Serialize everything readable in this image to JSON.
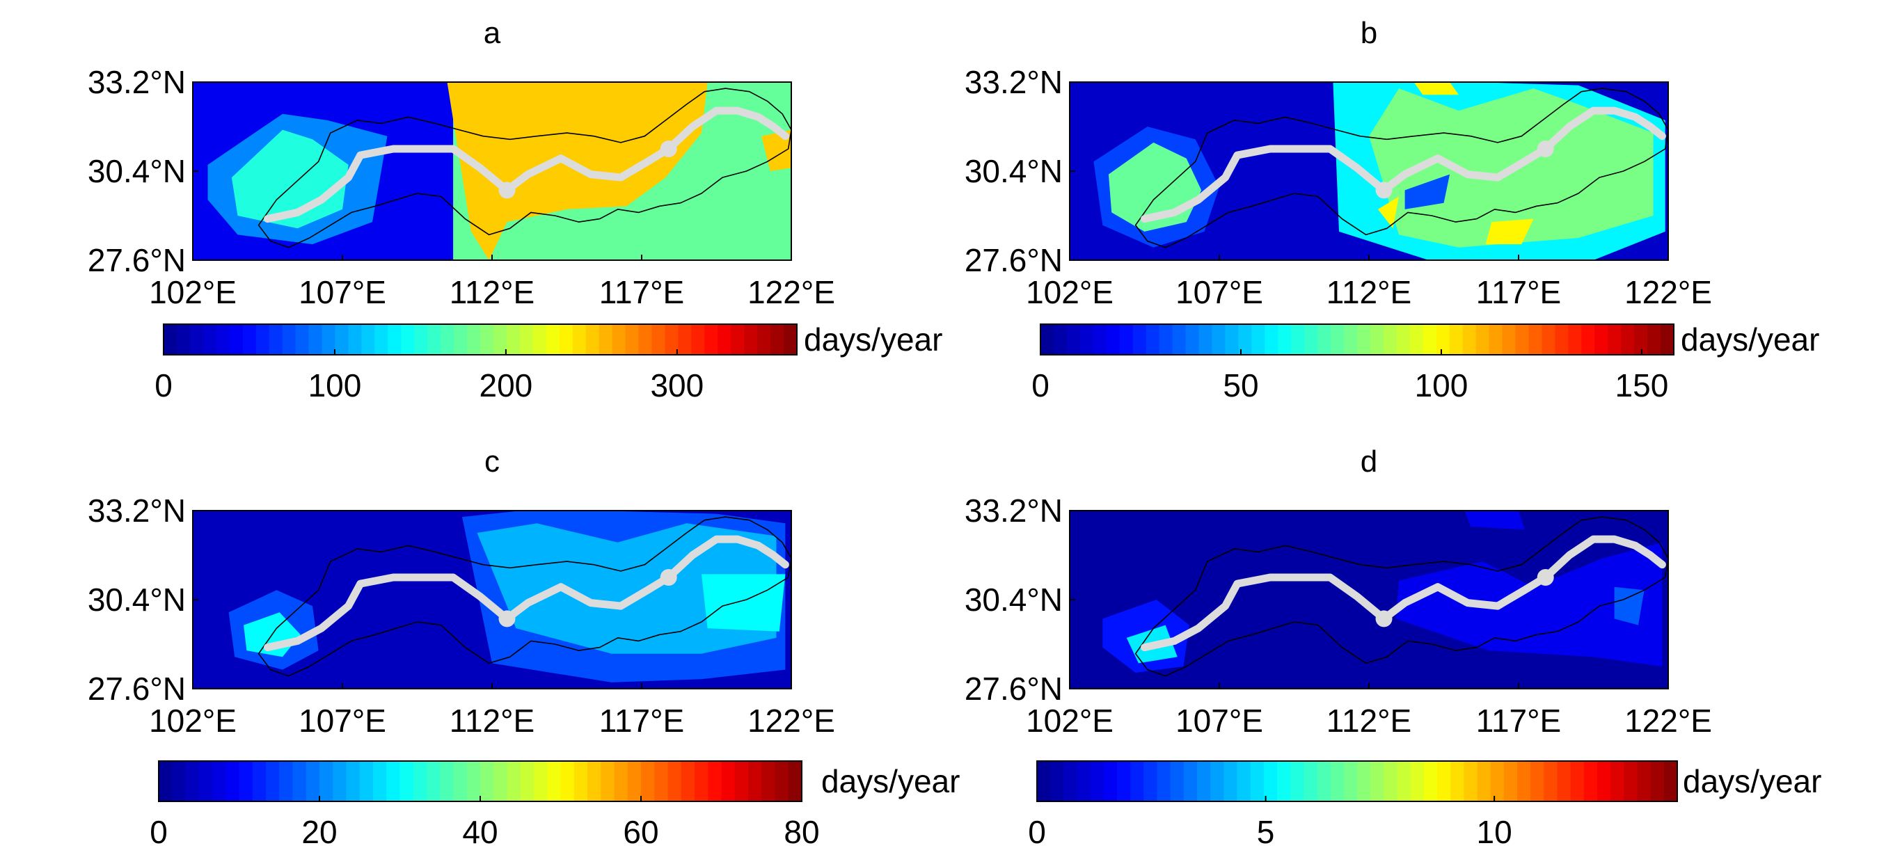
{
  "figure": {
    "background": "#ffffff",
    "river_color": "#dcdcdc",
    "boundary_color": "#000000"
  },
  "colormap": [
    "#00008f",
    "#0000ff",
    "#0080ff",
    "#00ffff",
    "#80ff80",
    "#ffff00",
    "#ff8000",
    "#ff0000",
    "#800000"
  ],
  "chart_data": [
    {
      "type": "heatmap",
      "panel_label": "a",
      "xticks": [
        "102°E",
        "107°E",
        "112°E",
        "117°E",
        "122°E"
      ],
      "yticks": [
        "33.2°N",
        "30.4°N",
        "27.6°N"
      ],
      "xlim": [
        102,
        122
      ],
      "ylim": [
        27.6,
        33.2
      ],
      "colorbar": {
        "label": "days/year",
        "min": 0,
        "max": 370,
        "ticks": [
          "0",
          "100",
          "200",
          "300"
        ],
        "tick_values": [
          0,
          100,
          200,
          300
        ]
      },
      "background_value": 40,
      "regions": [
        {
          "lon": [
            102.5,
            105,
            106.5,
            108.5,
            108,
            106,
            103.5,
            102.5
          ],
          "lat": [
            30.6,
            32.2,
            32,
            31.5,
            28.8,
            28.1,
            28.4,
            29.5
          ],
          "value": 95
        },
        {
          "lon": [
            103.3,
            105,
            106,
            107.2,
            107,
            105.5,
            103.5
          ],
          "lat": [
            30.2,
            31.7,
            31.4,
            30.6,
            29.2,
            28.6,
            29
          ],
          "value": 150
        },
        {
          "lon": [
            110.7,
            122,
            122,
            110.7
          ],
          "lat": [
            33.2,
            33.2,
            27.6,
            27.6
          ],
          "value": 175
        },
        {
          "lon": [
            110.5,
            119.2,
            119,
            117.8,
            116.5,
            114.5,
            112.5,
            111.9,
            111.3
          ],
          "lat": [
            33.2,
            33.2,
            31.6,
            30.2,
            29.3,
            29.2,
            28.8,
            27.6,
            28.5
          ],
          "value": 250
        },
        {
          "lon": [
            121,
            122,
            122,
            121.3
          ],
          "lat": [
            31.5,
            31.7,
            30.5,
            30.4
          ],
          "value": 250
        }
      ],
      "river_lon": [
        104.5,
        105.5,
        106.3,
        107.2,
        107.6,
        108.7,
        109.8,
        110.7,
        111.6,
        112.5,
        113.2,
        114.3,
        115.3,
        116.3,
        117.2,
        117.9,
        118.7,
        119.5,
        120.2,
        120.9,
        121.4,
        121.8
      ],
      "river_lat": [
        28.9,
        29.1,
        29.5,
        30.2,
        30.9,
        31.1,
        31.1,
        31.1,
        30.5,
        29.8,
        30.3,
        30.8,
        30.3,
        30.2,
        30.7,
        31.1,
        31.8,
        32.3,
        32.3,
        32.1,
        31.8,
        31.5
      ]
    },
    {
      "type": "heatmap",
      "panel_label": "b",
      "xticks": [
        "102°E",
        "107°E",
        "112°E",
        "117°E",
        "122°E"
      ],
      "yticks": [
        "33.2°N",
        "30.4°N",
        "27.6°N"
      ],
      "xlim": [
        102,
        122
      ],
      "ylim": [
        27.6,
        33.2
      ],
      "colorbar": {
        "label": "days/year",
        "min": 0,
        "max": 158,
        "ticks": [
          "0",
          "50",
          "100",
          "150"
        ],
        "tick_values": [
          0,
          50,
          100,
          150
        ]
      },
      "background_value": 10,
      "regions": [
        {
          "lon": [
            102.8,
            104.6,
            106.2,
            107,
            106.5,
            104.8,
            103.1
          ],
          "lat": [
            30.7,
            31.8,
            31.4,
            29.9,
            28.5,
            28,
            28.7
          ],
          "value": 30
        },
        {
          "lon": [
            103.3,
            104.8,
            105.9,
            106.4,
            105.9,
            104.5,
            103.4
          ],
          "lat": [
            30.3,
            31.3,
            30.8,
            29.8,
            28.8,
            28.5,
            29.1
          ],
          "value": 75
        },
        {
          "lon": [
            110.8,
            113,
            115.5,
            119,
            121.9,
            121.9,
            119.5,
            114,
            111
          ],
          "lat": [
            33.2,
            33.2,
            33.2,
            33.1,
            32,
            28.5,
            27.6,
            27.6,
            28.5
          ],
          "value": 58
        },
        {
          "lon": [
            112,
            113,
            115,
            117.5,
            119,
            121.5,
            121.5,
            119,
            115,
            113
          ],
          "lat": [
            31.5,
            33,
            32.3,
            33,
            32.5,
            31.6,
            29,
            28.3,
            28,
            28.4
          ],
          "value": 78
        },
        {
          "lon": [
            113.5,
            114.7,
            115,
            113.8
          ],
          "lat": [
            33.2,
            33.2,
            32.8,
            32.8
          ],
          "value": 100
        },
        {
          "lon": [
            112.3,
            113,
            112.8
          ],
          "lat": [
            29.2,
            29.6,
            28.6
          ],
          "value": 100
        },
        {
          "lon": [
            116.1,
            117.5,
            117.1,
            115.9
          ],
          "lat": [
            28.8,
            28.9,
            28.1,
            28.1
          ],
          "value": 100
        },
        {
          "lon": [
            113.2,
            114.7,
            114.5,
            113.2
          ],
          "lat": [
            29.8,
            30.3,
            29.4,
            29.2
          ],
          "value": 32
        }
      ],
      "river_lon": [
        104.5,
        105.5,
        106.3,
        107.2,
        107.6,
        108.7,
        109.8,
        110.7,
        111.6,
        112.5,
        113.2,
        114.3,
        115.3,
        116.3,
        117.2,
        117.9,
        118.7,
        119.5,
        120.2,
        120.9,
        121.4,
        121.8
      ],
      "river_lat": [
        28.9,
        29.1,
        29.5,
        30.2,
        30.9,
        31.1,
        31.1,
        31.1,
        30.5,
        29.8,
        30.3,
        30.8,
        30.3,
        30.2,
        30.7,
        31.1,
        31.8,
        32.3,
        32.3,
        32.1,
        31.8,
        31.5
      ]
    },
    {
      "type": "heatmap",
      "panel_label": "c",
      "xticks": [
        "102°E",
        "107°E",
        "112°E",
        "117°E",
        "122°E"
      ],
      "yticks": [
        "33.2°N",
        "30.4°N",
        "27.6°N"
      ],
      "xlim": [
        102,
        122
      ],
      "ylim": [
        27.6,
        33.2
      ],
      "colorbar": {
        "label": "days/year",
        "min": 0,
        "max": 80,
        "ticks": [
          "0",
          "20",
          "40",
          "60",
          "80"
        ],
        "tick_values": [
          0,
          20,
          40,
          60,
          80
        ]
      },
      "background_value": 4,
      "regions": [
        {
          "lon": [
            103.2,
            104.8,
            106,
            106.2,
            105,
            103.4
          ],
          "lat": [
            30,
            30.7,
            30.2,
            28.8,
            28.2,
            28.6
          ],
          "value": 16
        },
        {
          "lon": [
            103.7,
            104.9,
            105.6,
            105,
            103.8
          ],
          "lat": [
            29.6,
            30,
            29.3,
            28.6,
            28.8
          ],
          "value": 30
        },
        {
          "lon": [
            111,
            113,
            115.5,
            119.5,
            121.8,
            121.8,
            119,
            116,
            112
          ],
          "lat": [
            33,
            33.2,
            33.2,
            33.1,
            32.8,
            28.2,
            27.9,
            27.8,
            28.4
          ],
          "value": 16
        },
        {
          "lon": [
            111.5,
            113.5,
            116.2,
            118.5,
            121.5,
            121.5,
            119,
            116,
            112.8
          ],
          "lat": [
            32.5,
            32.8,
            32.2,
            32.8,
            32.4,
            29.2,
            28.7,
            28.7,
            29.5
          ],
          "value": 24
        },
        {
          "lon": [
            119,
            121.8,
            121.6,
            119.2
          ],
          "lat": [
            31.2,
            31.2,
            29.4,
            29.5
          ],
          "value": 30
        }
      ],
      "river_lon": [
        104.5,
        105.5,
        106.3,
        107.2,
        107.6,
        108.7,
        109.8,
        110.7,
        111.6,
        112.5,
        113.2,
        114.3,
        115.3,
        116.3,
        117.2,
        117.9,
        118.7,
        119.5,
        120.2,
        120.9,
        121.4,
        121.8
      ],
      "river_lat": [
        28.9,
        29.1,
        29.5,
        30.2,
        30.9,
        31.1,
        31.1,
        31.1,
        30.5,
        29.8,
        30.3,
        30.8,
        30.3,
        30.2,
        30.7,
        31.1,
        31.8,
        32.3,
        32.3,
        32.1,
        31.8,
        31.5
      ]
    },
    {
      "type": "heatmap",
      "panel_label": "d",
      "xticks": [
        "102°E",
        "107°E",
        "112°E",
        "117°E",
        "122°E"
      ],
      "yticks": [
        "33.2°N",
        "30.4°N",
        "27.6°N"
      ],
      "xlim": [
        102,
        122
      ],
      "ylim": [
        27.6,
        33.2
      ],
      "colorbar": {
        "label": "days/year",
        "min": 0,
        "max": 14,
        "ticks": [
          "0",
          "5",
          "10"
        ],
        "tick_values": [
          0,
          5,
          10
        ]
      },
      "background_value": 0.3,
      "regions": [
        {
          "lon": [
            103.1,
            104.9,
            106,
            105.8,
            104.2,
            103.1
          ],
          "lat": [
            29.8,
            30.4,
            29.6,
            28.3,
            28.1,
            28.9
          ],
          "value": 2
        },
        {
          "lon": [
            103.9,
            105.2,
            105.6,
            104.3
          ],
          "lat": [
            29.2,
            29.6,
            28.6,
            28.4
          ],
          "value": 5
        },
        {
          "lon": [
            113,
            115.8,
            117.5,
            119.8,
            121.8,
            121.8,
            119.5,
            116,
            112.9
          ],
          "lat": [
            31,
            31.6,
            30.8,
            31.7,
            32.2,
            28.3,
            28.6,
            28.8,
            29.8
          ],
          "value": 1.5
        },
        {
          "lon": [
            115.2,
            117,
            117.2,
            115.4
          ],
          "lat": [
            33.2,
            33.2,
            32.6,
            32.7
          ],
          "value": 1.5
        },
        {
          "lon": [
            120.2,
            121.2,
            121,
            120.2
          ],
          "lat": [
            30.8,
            30.7,
            29.6,
            29.8
          ],
          "value": 3
        }
      ],
      "river_lon": [
        104.5,
        105.5,
        106.3,
        107.2,
        107.6,
        108.7,
        109.8,
        110.7,
        111.6,
        112.5,
        113.2,
        114.3,
        115.3,
        116.3,
        117.2,
        117.9,
        118.7,
        119.5,
        120.2,
        120.9,
        121.4,
        121.8
      ],
      "river_lat": [
        28.9,
        29.1,
        29.5,
        30.2,
        30.9,
        31.1,
        31.1,
        31.1,
        30.5,
        29.8,
        30.3,
        30.8,
        30.3,
        30.2,
        30.7,
        31.1,
        31.8,
        32.3,
        32.3,
        32.1,
        31.8,
        31.5
      ]
    }
  ],
  "boundary_lon": [
    104.2,
    104.8,
    105.5,
    106.2,
    106.6,
    107.5,
    108.3,
    109.2,
    110.1,
    110.9,
    111.7,
    112.6,
    113.5,
    114.5,
    115.4,
    116.3,
    117.1,
    117.8,
    118.5,
    119.1,
    119.8,
    120.6,
    121.2,
    121.7,
    122,
    121.9,
    121.2,
    120.5,
    119.7,
    119,
    118.3,
    117.6,
    116.9,
    116.2,
    115.6,
    114.9,
    114.1,
    113.3,
    112.6,
    111.9,
    111.1,
    110.3,
    109.5,
    108.8,
    108.1,
    107.3,
    106.6,
    105.9,
    105.2,
    104.6,
    104.2
  ],
  "boundary_lat": [
    28.7,
    29.5,
    30.1,
    30.7,
    31.6,
    32,
    31.9,
    32.1,
    31.9,
    31.7,
    31.5,
    31.4,
    31.5,
    31.6,
    31.5,
    31.3,
    31.5,
    32,
    32.5,
    32.9,
    33,
    32.9,
    32.6,
    32.2,
    31.7,
    31.1,
    30.7,
    30.4,
    30.2,
    29.7,
    29.4,
    29.3,
    29.1,
    29.2,
    28.9,
    28.8,
    29,
    29.1,
    28.6,
    28.4,
    28.9,
    29.6,
    29.7,
    29.5,
    29.3,
    29.1,
    28.7,
    28.3,
    28,
    28.2,
    28.7
  ]
}
